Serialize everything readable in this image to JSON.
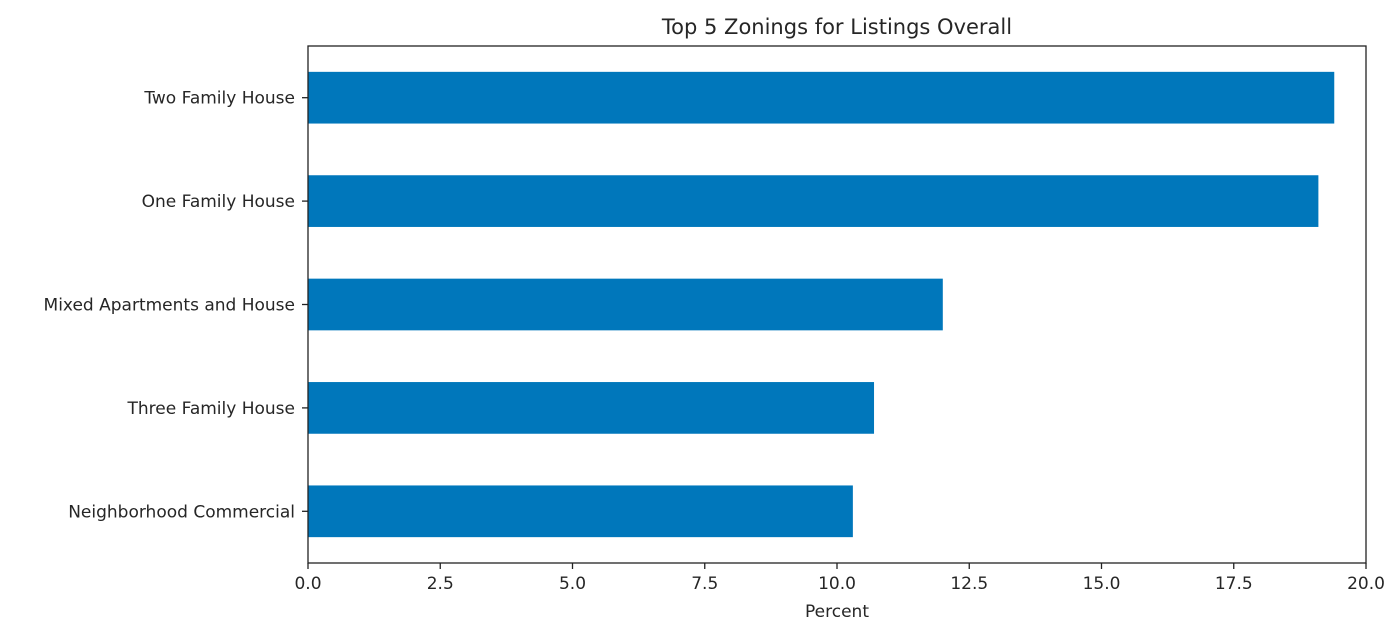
{
  "chart_data": {
    "type": "bar",
    "orientation": "horizontal",
    "title": "Top 5 Zonings for Listings Overall",
    "xlabel": "Percent",
    "ylabel": "",
    "xlim": [
      0,
      20
    ],
    "xticks": [
      "0.0",
      "2.5",
      "5.0",
      "7.5",
      "10.0",
      "12.5",
      "15.0",
      "17.5",
      "20.0"
    ],
    "categories": [
      "Two Family House",
      "One Family House",
      "Mixed Apartments and House",
      "Three Family House",
      "Neighborhood Commercial"
    ],
    "values": [
      19.4,
      19.1,
      12.0,
      10.7,
      10.3
    ],
    "grid": false,
    "legend": "none",
    "colors": {
      "bar": "#0077bb",
      "axis": "#222222",
      "text": "#262626"
    }
  }
}
